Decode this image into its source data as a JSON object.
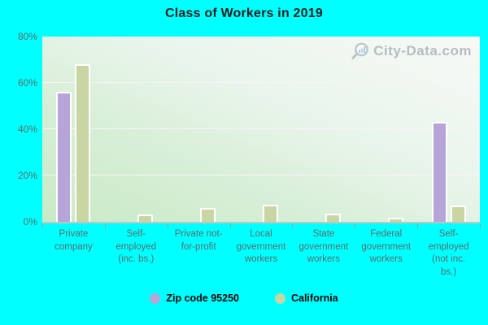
{
  "title": "Class of Workers in 2019",
  "watermark": {
    "text": "City-Data.com",
    "icon": "magnifier-with-bars"
  },
  "legend": {
    "items": [
      {
        "label": "Zip code 95250",
        "color": "#b7a4d9"
      },
      {
        "label": "California",
        "color": "#c9d5a2"
      }
    ]
  },
  "colors": {
    "page_background": "#00ffff",
    "zip_bar": "#b7a4d9",
    "california_bar": "#c9d5a2",
    "plot_gradient_top": "#f7f9f6",
    "plot_gradient_bottom": "#c8eac7",
    "axis_line": "#bcc8c0",
    "tick_label": "#5c6c6c",
    "title_text": "#1c1c1c",
    "watermark_text": "#8f9aa3"
  },
  "chart_data": {
    "type": "bar",
    "title": "Class of Workers in 2019",
    "xlabel": "",
    "ylabel": "",
    "ylim": [
      0,
      80
    ],
    "grid": true,
    "legend_position": "bottom",
    "yticks": [
      {
        "value": 0,
        "label": "0%"
      },
      {
        "value": 20,
        "label": "20%"
      },
      {
        "value": 40,
        "label": "40%"
      },
      {
        "value": 60,
        "label": "60%"
      },
      {
        "value": 80,
        "label": "80%"
      }
    ],
    "categories": [
      "Private company",
      "Self-employed (inc. bs.)",
      "Private not-for-profit",
      "Local government workers",
      "State government workers",
      "Federal government workers",
      "Self-employed (not inc. bs.)"
    ],
    "category_label_lines": [
      [
        "Private",
        "company"
      ],
      [
        "Self-",
        "employed",
        "(inc. bs.)"
      ],
      [
        "Private not-",
        "for-profit"
      ],
      [
        "Local",
        "government",
        "workers"
      ],
      [
        "State",
        "government",
        "workers"
      ],
      [
        "Federal",
        "government",
        "workers"
      ],
      [
        "Self-",
        "employed",
        "(not inc.",
        "bs.)"
      ]
    ],
    "series": [
      {
        "name": "Zip code 95250",
        "color": "#b7a4d9",
        "values": [
          56,
          0,
          0,
          0,
          0,
          0,
          43
        ]
      },
      {
        "name": "California",
        "color": "#c9d5a2",
        "values": [
          68,
          3,
          6,
          7.5,
          3.5,
          1.7,
          7
        ]
      }
    ]
  }
}
